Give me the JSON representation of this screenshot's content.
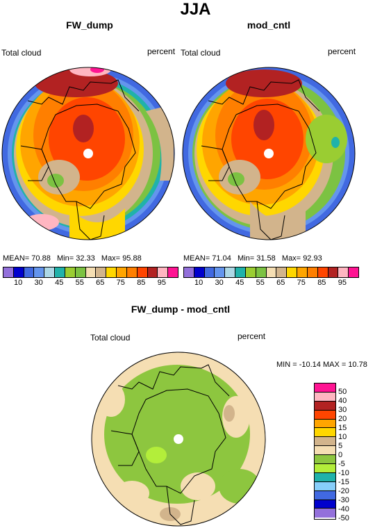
{
  "title": "JJA",
  "panels": {
    "left": {
      "title": "FW_dump",
      "var_label": "Total cloud",
      "units": "percent",
      "stats": {
        "mean_label": "MEAN=",
        "mean": "70.88",
        "min_label": "Min=",
        "min": "32.33",
        "max_label": "Max=",
        "max": "95.88"
      }
    },
    "right": {
      "title": "mod_cntl",
      "var_label": "Total cloud",
      "units": "percent",
      "stats": {
        "mean_label": "MEAN=",
        "mean": "71.04",
        "min_label": "Min=",
        "min": "31.58",
        "max_label": "Max=",
        "max": "92.93"
      }
    },
    "diff": {
      "title": "FW_dump - mod_cntl",
      "var_label": "Total cloud",
      "units": "percent",
      "minmax": "MIN = -10.14  MAX =  10.78"
    }
  },
  "colorbar_abs": {
    "colors": [
      "#9370db",
      "#0000cd",
      "#4169e1",
      "#6495ed",
      "#add8e6",
      "#20b2aa",
      "#9acd32",
      "#7cc242",
      "#f5deb3",
      "#d2b48c",
      "#ffd700",
      "#ffa500",
      "#ff7f00",
      "#ff4500",
      "#b22222",
      "#ffb6c1",
      "#ff1493"
    ],
    "ticks": [
      "10",
      "30",
      "45",
      "55",
      "65",
      "75",
      "85",
      "95"
    ]
  },
  "colorbar_diff": {
    "colors": [
      "#ff1493",
      "#ffb6c1",
      "#b22222",
      "#ff4500",
      "#ffa500",
      "#ffd700",
      "#d2b48c",
      "#f5deb3",
      "#8dc63f",
      "#b3ee3a",
      "#20b2aa",
      "#87cefa",
      "#4169e1",
      "#0000cd",
      "#9370db"
    ],
    "ticks": [
      "50",
      "40",
      "30",
      "20",
      "15",
      "10",
      "5",
      "0",
      "-5",
      "-10",
      "-15",
      "-20",
      "-30",
      "-40",
      "-50"
    ]
  }
}
